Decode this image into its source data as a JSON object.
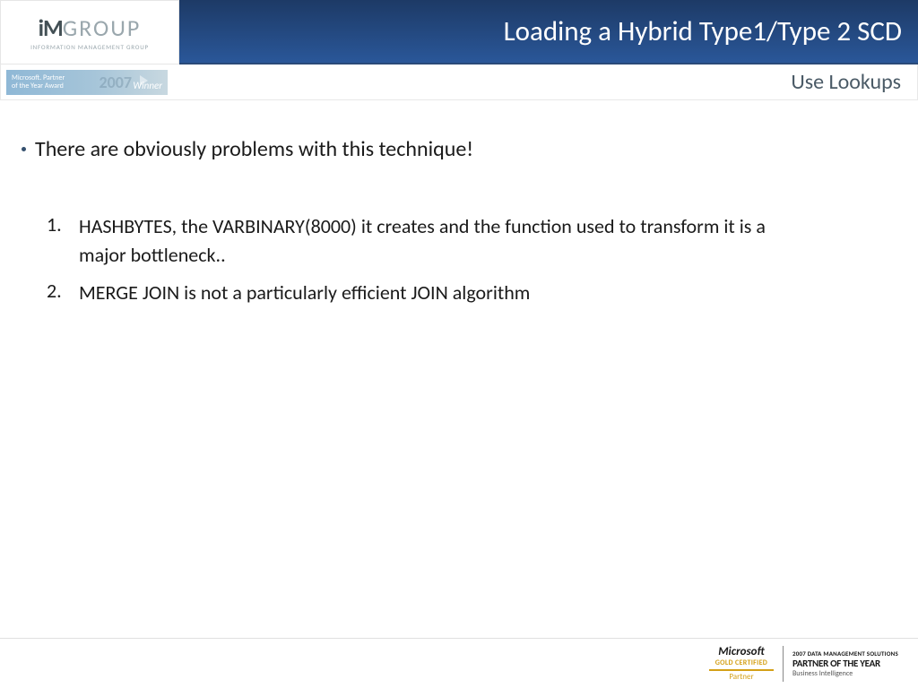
{
  "colors": {
    "title_bg_start": "#1d3a66",
    "title_bg_end": "#2a5799",
    "subtitle": "#4a5a66",
    "bullet": "#35506e",
    "gold": "#d4a017",
    "logo_dark": "#435055",
    "logo_light": "#9aa7ad"
  },
  "logo": {
    "prefix": "iM",
    "suffix": "GROUP",
    "sub": "INFORMATION MANAGEMENT GROUP",
    "prefix_fontsize": 26,
    "suffix_fontsize": 26
  },
  "title": {
    "text": "Loading a Hybrid Type1/Type 2 SCD",
    "fontsize": 31
  },
  "badge": {
    "line1": "Microsoft. Partner",
    "line2": "of the Year Award",
    "year": "2007",
    "winner": "Winner"
  },
  "subtitle": "Use Lookups",
  "content": {
    "bullet": "There are obviously problems with this technique!",
    "numbered": [
      "HASHBYTES, the VARBINARY(8000) it creates and the function used to transform it is a major bottleneck..",
      "MERGE JOIN is not a particularly efficient JOIN algorithm"
    ]
  },
  "footer": {
    "ms": "Microsoft",
    "gold": "GOLD CERTIFIED",
    "partner": "Partner",
    "poy_year": "2007 DATA MANAGEMENT SOLUTIONS",
    "poy": "PARTNER OF THE YEAR",
    "poy_sub": "Business Intelligence"
  }
}
